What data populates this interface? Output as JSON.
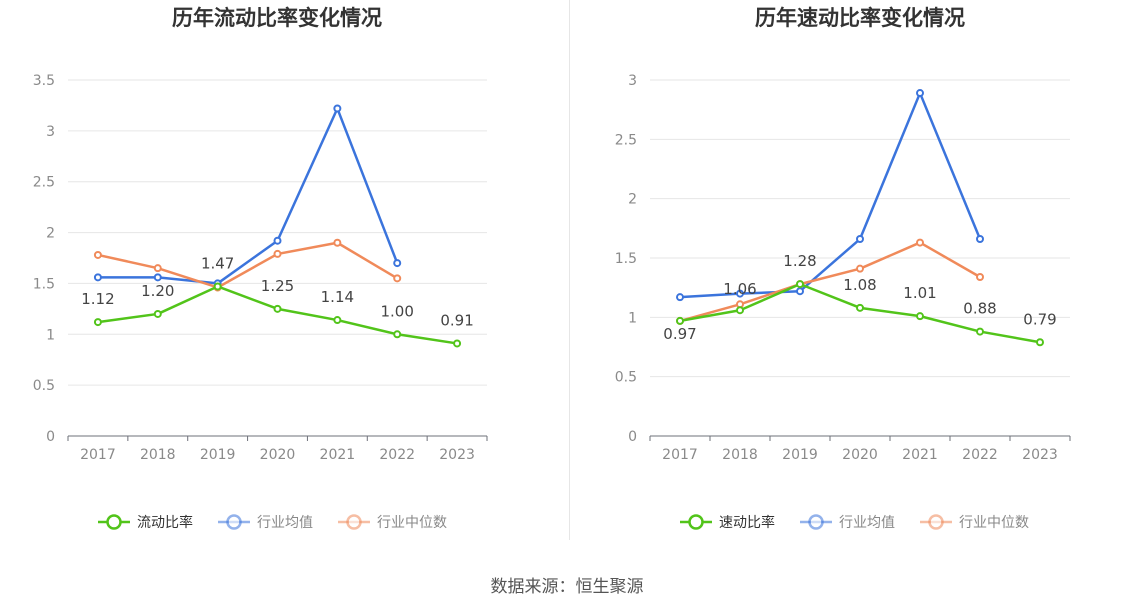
{
  "chart_data": [
    {
      "type": "line",
      "title": "历年流动比率变化情况",
      "categories": [
        "2017",
        "2018",
        "2019",
        "2020",
        "2021",
        "2022",
        "2023"
      ],
      "ylim": [
        0,
        3.5
      ],
      "yticks": [
        0,
        0.5,
        1,
        1.5,
        2,
        2.5,
        3,
        3.5
      ],
      "ytick_labels": [
        "0",
        "0.5",
        "1",
        "1.5",
        "2",
        "2.5",
        "3",
        "3.5"
      ],
      "grid": true,
      "legend_position": "bottom",
      "series": [
        {
          "name": "流动比率",
          "color": "#52c41a",
          "labeled": true,
          "values": [
            1.12,
            1.2,
            1.47,
            1.25,
            1.14,
            1.0,
            0.91
          ],
          "labels": [
            "1.12",
            "1.20",
            "1.47",
            "1.25",
            "1.14",
            "1.00",
            "0.91"
          ]
        },
        {
          "name": "行业均值",
          "color": "#3b74dc",
          "labeled": false,
          "values": [
            1.56,
            1.56,
            1.5,
            1.92,
            3.22,
            1.7,
            null
          ]
        },
        {
          "name": "行业中位数",
          "color": "#f08a5a",
          "labeled": false,
          "values": [
            1.78,
            1.65,
            1.46,
            1.79,
            1.9,
            1.55,
            null
          ]
        }
      ]
    },
    {
      "type": "line",
      "title": "历年速动比率变化情况",
      "categories": [
        "2017",
        "2018",
        "2019",
        "2020",
        "2021",
        "2022",
        "2023"
      ],
      "ylim": [
        0,
        3
      ],
      "yticks": [
        0,
        0.5,
        1,
        1.5,
        2,
        2.5,
        3
      ],
      "ytick_labels": [
        "0",
        "0.5",
        "1",
        "1.5",
        "2",
        "2.5",
        "3"
      ],
      "grid": true,
      "legend_position": "bottom",
      "series": [
        {
          "name": "速动比率",
          "color": "#52c41a",
          "labeled": true,
          "values": [
            0.97,
            1.06,
            1.28,
            1.08,
            1.01,
            0.88,
            0.79
          ],
          "labels": [
            "0.97",
            "1.06",
            "1.28",
            "1.08",
            "1.01",
            "0.88",
            "0.79"
          ]
        },
        {
          "name": "行业均值",
          "color": "#3b74dc",
          "labeled": false,
          "values": [
            1.17,
            1.2,
            1.22,
            1.66,
            2.89,
            1.66,
            null
          ]
        },
        {
          "name": "行业中位数",
          "color": "#f08a5a",
          "labeled": false,
          "values": [
            0.97,
            1.11,
            1.28,
            1.41,
            1.63,
            1.34,
            null
          ]
        }
      ]
    }
  ],
  "footer": {
    "source": "数据来源：恒生聚源"
  }
}
